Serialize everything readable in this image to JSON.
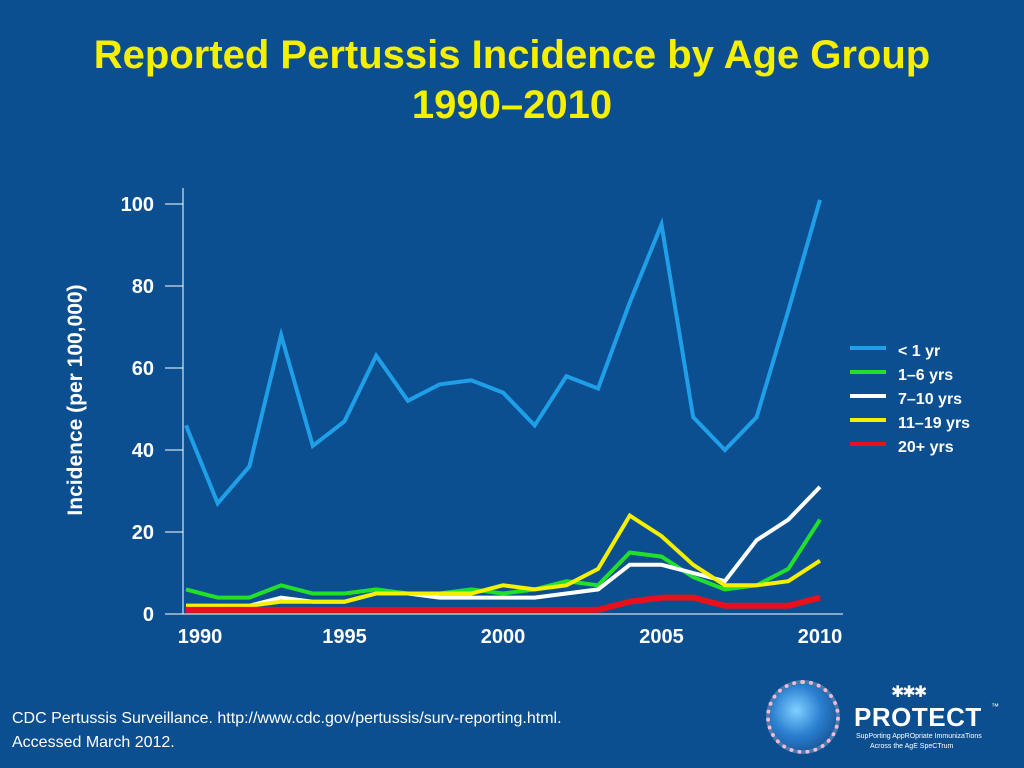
{
  "slide": {
    "title_line1": "Reported Pertussis Incidence by Age Group",
    "title_line2": "1990–2010",
    "source_line1": "CDC Pertussis Surveillance. http://www.cdc.gov/pertussis/surv-reporting.html.",
    "source_line2": "Accessed March 2012."
  },
  "logo": {
    "wordmark": "PROTECT",
    "trademark": "™",
    "tagline_line1": "SupPorting AppROpriate ImmunizaTions",
    "tagline_line2": "Across the AgE SpeCTrum",
    "icon": "people-figures-icon"
  },
  "colors": {
    "background": "#0b4f91",
    "title": "#f5f000",
    "axis": "#ffffff"
  },
  "chart_data": {
    "type": "line",
    "title": "Reported Pertussis Incidence by Age Group 1990–2010",
    "ylabel": "Incidence (per 100,000)",
    "xlabel": "",
    "ylim": [
      0,
      100
    ],
    "xlim": [
      1990,
      2010
    ],
    "y_ticks": [
      0,
      20,
      40,
      60,
      80,
      100
    ],
    "x_ticks": [
      1990,
      1995,
      2000,
      2005,
      2010
    ],
    "grid": false,
    "legend_position": "right",
    "x": [
      1990,
      1991,
      1992,
      1993,
      1994,
      1995,
      1996,
      1997,
      1998,
      1999,
      2000,
      2001,
      2002,
      2003,
      2004,
      2005,
      2006,
      2007,
      2008,
      2009,
      2010
    ],
    "series": [
      {
        "name": " < 1 yr",
        "color": "#1e9fe8",
        "width": 4,
        "values": [
          46,
          27,
          36,
          68,
          41,
          47,
          63,
          52,
          56,
          57,
          54,
          46,
          58,
          55,
          76,
          95,
          48,
          40,
          48,
          74,
          101
        ]
      },
      {
        "name": "1–6 yrs",
        "color": "#22e02a",
        "width": 4,
        "values": [
          6,
          4,
          4,
          7,
          5,
          5,
          6,
          5,
          5,
          6,
          5,
          6,
          8,
          7,
          15,
          14,
          9,
          6,
          7,
          11,
          23
        ]
      },
      {
        "name": "7–10 yrs",
        "color": "#ffffff",
        "width": 4,
        "values": [
          2,
          2,
          2,
          4,
          3,
          3,
          5,
          5,
          4,
          4,
          4,
          4,
          5,
          6,
          12,
          12,
          10,
          8,
          18,
          23,
          31
        ]
      },
      {
        "name": "11–19 yrs",
        "color": "#f5f000",
        "width": 4,
        "values": [
          2,
          2,
          2,
          3,
          3,
          3,
          5,
          5,
          5,
          5,
          7,
          6,
          7,
          11,
          24,
          19,
          12,
          7,
          7,
          8,
          13
        ]
      },
      {
        "name": "20+ yrs",
        "color": "#e8101a",
        "width": 6,
        "values": [
          1,
          1,
          1,
          1,
          1,
          1,
          1,
          1,
          1,
          1,
          1,
          1,
          1,
          1,
          3,
          4,
          4,
          2,
          2,
          2,
          4
        ]
      }
    ]
  }
}
